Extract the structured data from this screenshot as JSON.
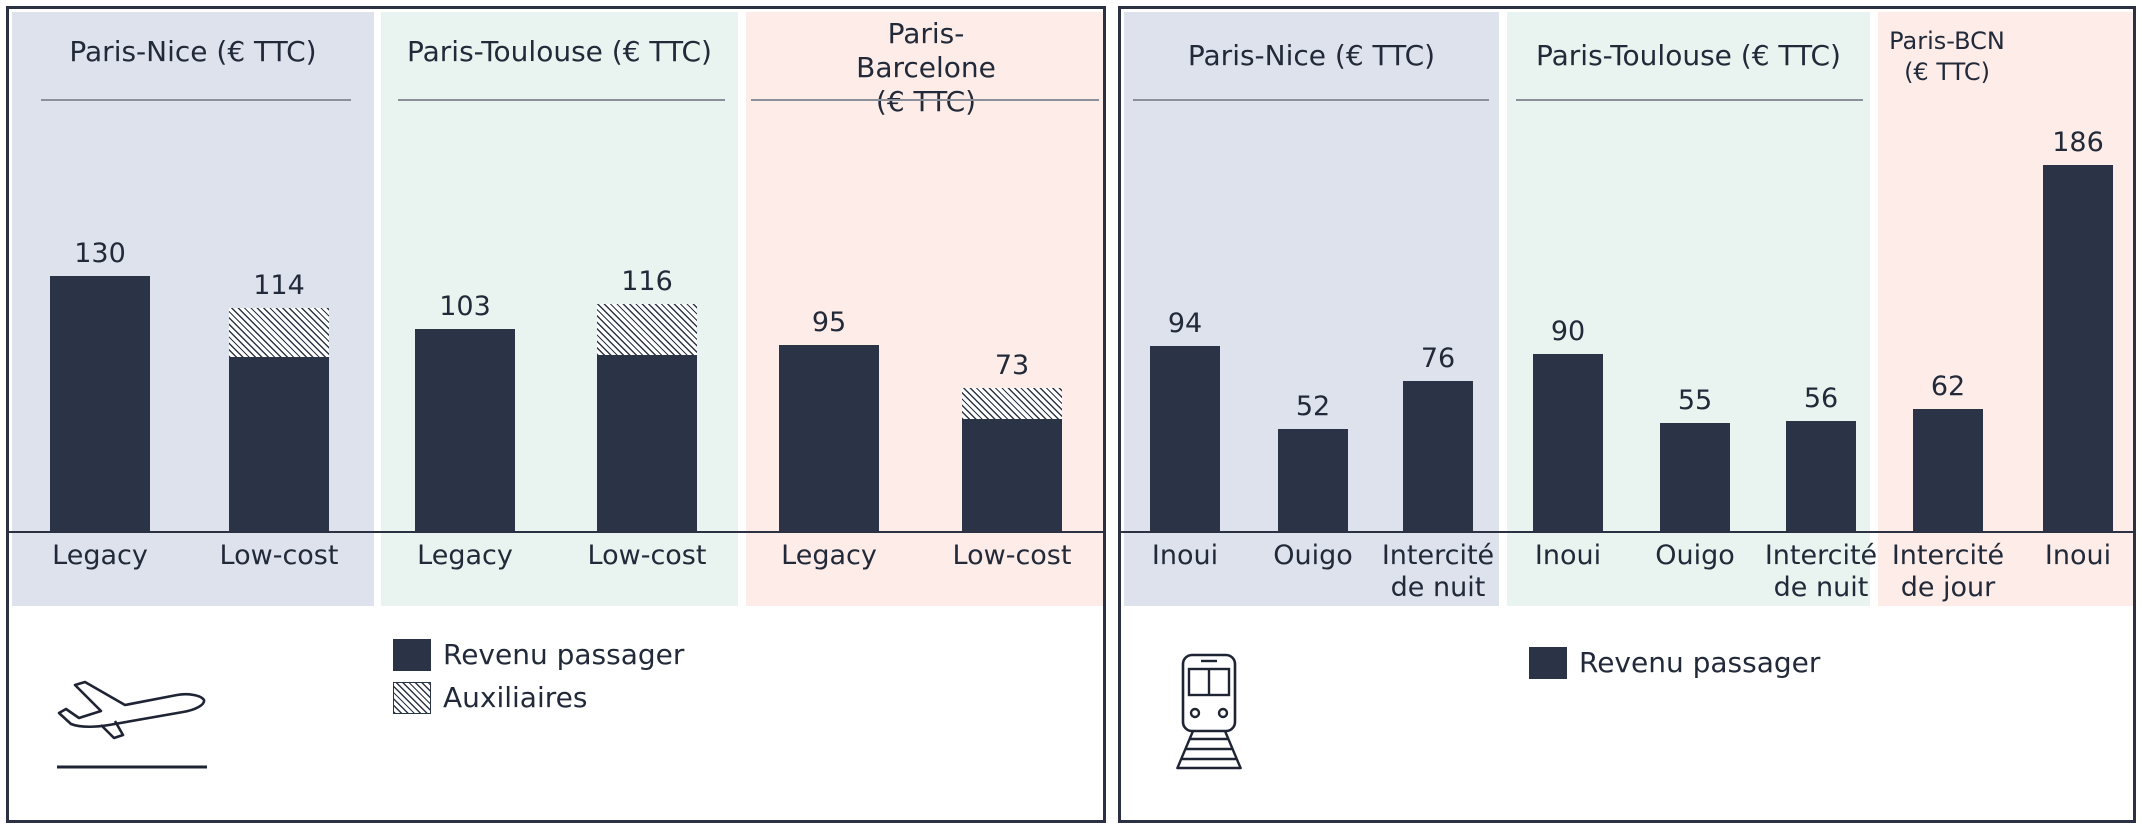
{
  "colors": {
    "bar": "#2b3447",
    "group_nice": "#dde2ec",
    "group_toulouse": "#e9f3ef",
    "group_barcelona": "#fdece8"
  },
  "chart_data": [
    {
      "type": "bar",
      "stacked": true,
      "groups": [
        {
          "title": "Paris-Nice (€ TTC)",
          "categories": [
            "Legacy",
            "Low-cost"
          ],
          "revenu_passager": [
            130,
            89
          ],
          "auxiliaires": [
            0,
            25
          ],
          "totals": [
            130,
            114
          ]
        },
        {
          "title": "Paris-Toulouse (€ TTC)",
          "categories": [
            "Legacy",
            "Low-cost"
          ],
          "revenu_passager": [
            103,
            90
          ],
          "auxiliaires": [
            0,
            26
          ],
          "totals": [
            103,
            116
          ]
        },
        {
          "title": "Paris-Barcelone (€ TTC)",
          "categories": [
            "Legacy",
            "Low-cost"
          ],
          "revenu_passager": [
            95,
            57
          ],
          "auxiliaires": [
            0,
            16
          ],
          "totals": [
            95,
            73
          ]
        }
      ],
      "legend": [
        {
          "name": "Revenu passager",
          "pattern": "solid"
        },
        {
          "name": "Auxiliaires",
          "pattern": "hatched"
        }
      ],
      "icon": "airplane-takeoff-icon"
    },
    {
      "type": "bar",
      "groups": [
        {
          "title": "Paris-Nice (€ TTC)",
          "categories": [
            "Inoui",
            "Ouigo",
            "Intercité de nuit"
          ],
          "values": [
            94,
            52,
            76
          ]
        },
        {
          "title": "Paris-Toulouse (€ TTC)",
          "categories": [
            "Inoui",
            "Ouigo",
            "Intercité de nuit",
            "Intercité de jour"
          ],
          "values": [
            90,
            55,
            56,
            62
          ]
        },
        {
          "title": "Paris-BCN (€ TTC)",
          "categories": [
            "Inoui"
          ],
          "values": [
            186
          ]
        }
      ],
      "legend": [
        {
          "name": "Revenu passager",
          "pattern": "solid"
        }
      ],
      "icon": "train-icon"
    }
  ]
}
